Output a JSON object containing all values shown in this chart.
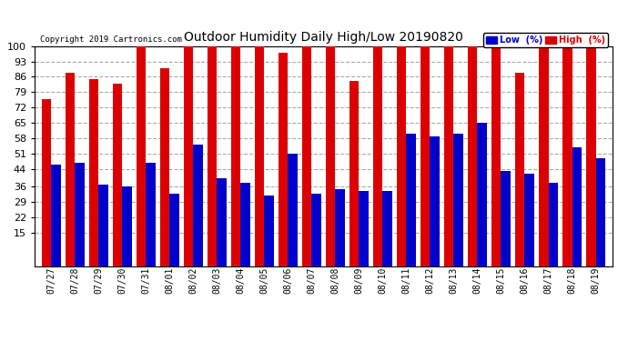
{
  "title": "Outdoor Humidity Daily High/Low 20190820",
  "copyright": "Copyright 2019 Cartronics.com",
  "background_color": "#ffffff",
  "plot_bg_color": "#ffffff",
  "grid_color": "#aaaaaa",
  "bar_color_low": "#0000cc",
  "bar_color_high": "#dd0000",
  "legend_low_label": "Low  (%)",
  "legend_high_label": "High  (%)",
  "ylim": [
    15,
    100
  ],
  "yticks": [
    15,
    22,
    29,
    36,
    44,
    51,
    58,
    65,
    72,
    79,
    86,
    93,
    100
  ],
  "dates": [
    "07/27",
    "07/28",
    "07/29",
    "07/30",
    "07/31",
    "08/01",
    "08/02",
    "08/03",
    "08/04",
    "08/05",
    "08/06",
    "08/07",
    "08/08",
    "08/09",
    "08/10",
    "08/11",
    "08/12",
    "08/13",
    "08/14",
    "08/15",
    "08/16",
    "08/17",
    "08/18",
    "08/19"
  ],
  "high_values": [
    76,
    88,
    85,
    83,
    100,
    90,
    100,
    100,
    100,
    100,
    97,
    100,
    100,
    84,
    100,
    100,
    100,
    100,
    100,
    100,
    88,
    100,
    100,
    100
  ],
  "low_values": [
    46,
    47,
    37,
    36,
    47,
    33,
    55,
    40,
    38,
    32,
    51,
    33,
    35,
    34,
    34,
    60,
    59,
    60,
    65,
    43,
    42,
    38,
    54,
    49
  ]
}
